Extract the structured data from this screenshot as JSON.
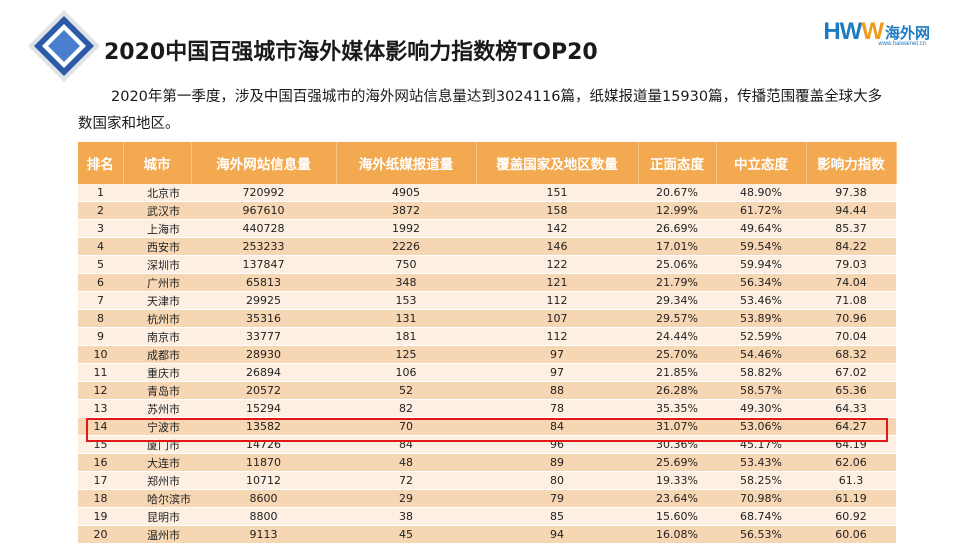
{
  "title": "2020中国百强城市海外媒体影响力指数榜TOP20",
  "logo": {
    "brand_prefix": "HW",
    "brand_suffix": "W",
    "brand_cn": "海外网",
    "url": "www.haiwainet.cn"
  },
  "intro": "2020年第一季度，涉及中国百强城市的海外网站信息量达到3024116篇，纸媒报道量15930篇，传播范围覆盖全球大多数国家和地区。",
  "table": {
    "headers": [
      "排名",
      "城市",
      "海外网站信息量",
      "海外纸媒报道量",
      "覆盖国家及地区数量",
      "正面态度",
      "中立态度",
      "影响力指数"
    ],
    "rows": [
      [
        "1",
        "北京市",
        "720992",
        "4905",
        "151",
        "20.67%",
        "48.90%",
        "97.38"
      ],
      [
        "2",
        "武汉市",
        "967610",
        "3872",
        "158",
        "12.99%",
        "61.72%",
        "94.44"
      ],
      [
        "3",
        "上海市",
        "440728",
        "1992",
        "142",
        "26.69%",
        "49.64%",
        "85.37"
      ],
      [
        "4",
        "西安市",
        "253233",
        "2226",
        "146",
        "17.01%",
        "59.54%",
        "84.22"
      ],
      [
        "5",
        "深圳市",
        "137847",
        "750",
        "122",
        "25.06%",
        "59.94%",
        "79.03"
      ],
      [
        "6",
        "广州市",
        "65813",
        "348",
        "121",
        "21.79%",
        "56.34%",
        "74.04"
      ],
      [
        "7",
        "天津市",
        "29925",
        "153",
        "112",
        "29.34%",
        "53.46%",
        "71.08"
      ],
      [
        "8",
        "杭州市",
        "35316",
        "131",
        "107",
        "29.57%",
        "53.89%",
        "70.96"
      ],
      [
        "9",
        "南京市",
        "33777",
        "181",
        "112",
        "24.44%",
        "52.59%",
        "70.04"
      ],
      [
        "10",
        "成都市",
        "28930",
        "125",
        "97",
        "25.70%",
        "54.46%",
        "68.32"
      ],
      [
        "11",
        "重庆市",
        "26894",
        "106",
        "97",
        "21.85%",
        "58.82%",
        "67.02"
      ],
      [
        "12",
        "青岛市",
        "20572",
        "52",
        "88",
        "26.28%",
        "58.57%",
        "65.36"
      ],
      [
        "13",
        "苏州市",
        "15294",
        "82",
        "78",
        "35.35%",
        "49.30%",
        "64.33"
      ],
      [
        "14",
        "宁波市",
        "13582",
        "70",
        "84",
        "31.07%",
        "53.06%",
        "64.27"
      ],
      [
        "15",
        "厦门市",
        "14726",
        "84",
        "96",
        "30.36%",
        "45.17%",
        "64.19"
      ],
      [
        "16",
        "大连市",
        "11870",
        "48",
        "89",
        "25.69%",
        "53.43%",
        "62.06"
      ],
      [
        "17",
        "郑州市",
        "10712",
        "72",
        "80",
        "19.33%",
        "58.25%",
        "61.3"
      ],
      [
        "18",
        "哈尔滨市",
        "8600",
        "29",
        "79",
        "23.64%",
        "70.98%",
        "61.19"
      ],
      [
        "19",
        "昆明市",
        "8800",
        "38",
        "85",
        "15.60%",
        "68.74%",
        "60.92"
      ],
      [
        "20",
        "温州市",
        "9113",
        "45",
        "94",
        "16.08%",
        "56.53%",
        "60.06"
      ]
    ],
    "highlighted_rank": "15"
  },
  "colors": {
    "header_bg": "#f3a94f",
    "row_light": "#fdf0e2",
    "row_dark": "#f7d6b3",
    "highlight_border": "#e01818",
    "brand_blue": "#1f7bc1"
  }
}
